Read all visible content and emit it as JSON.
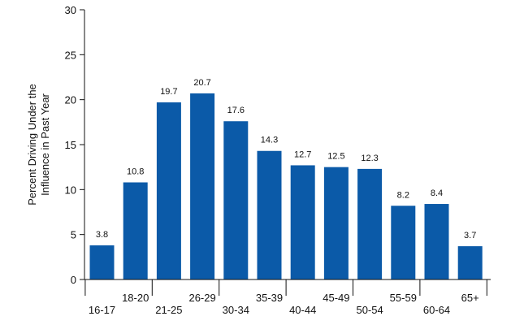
{
  "chart_data": {
    "type": "bar",
    "categories": [
      "16-17",
      "18-20",
      "21-25",
      "26-29",
      "30-34",
      "35-39",
      "40-44",
      "45-49",
      "50-54",
      "55-59",
      "60-64",
      "65+"
    ],
    "values": [
      3.8,
      10.8,
      19.7,
      20.7,
      17.6,
      14.3,
      12.7,
      12.5,
      12.3,
      8.2,
      8.4,
      3.7
    ],
    "data_labels": [
      "3.8",
      "10.8",
      "19.7",
      "20.7",
      "17.6",
      "14.3",
      "12.7",
      "12.5",
      "12.3",
      "8.2",
      "8.4",
      "3.7"
    ],
    "ylabel_lines": [
      "Percent Driving Under the",
      "Influence in Past Year"
    ],
    "ylim": [
      0,
      30
    ],
    "yticks": [
      0,
      5,
      10,
      15,
      20,
      25,
      30
    ],
    "bar_color": "#0b5aa8",
    "grid": false,
    "legend": "none"
  }
}
